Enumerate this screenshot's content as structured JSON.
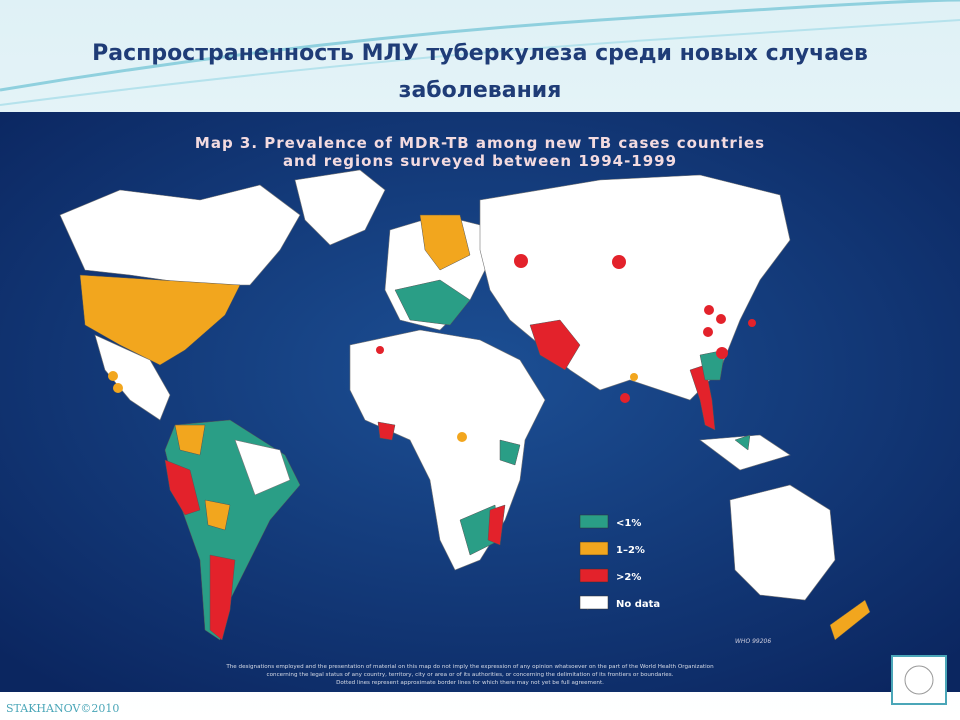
{
  "header": {
    "title_lines": [
      "Распространенность МЛУ туберкулеза среди новых случаев",
      "заболевания"
    ]
  },
  "map": {
    "title_lines": [
      "Map 3.  Prevalence of MDR-TB among new TB cases countries",
      "and regions surveyed between 1994-1999"
    ],
    "legend": [
      {
        "label": "<1%",
        "color": "#2a9e86"
      },
      {
        "label": "1–2%",
        "color": "#f2a61e"
      },
      {
        "label": ">2%",
        "color": "#e3222b"
      },
      {
        "label": "No data",
        "color": "#ffffff"
      }
    ],
    "code": "WHO 99206",
    "disclaimer": [
      "The designations employed and the presentation of material on this map do not imply the expression of any opinion whatsoever on the part of the World Health Organization",
      "concerning the legal status of any country, territory, city or area or of its authorities, or concerning the delimitation of its frontiers or boundaries.",
      "Dotted lines represent approximate border lines for which there may not yet be full agreement."
    ]
  },
  "footer": {
    "credit": "STAKHANOV©2010"
  }
}
